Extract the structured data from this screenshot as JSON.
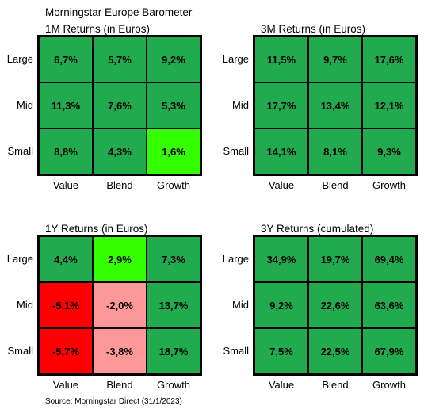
{
  "header": {
    "title": "Morningstar Europe Barometer"
  },
  "source": "Source: Morningstar Direct (31/1/2023)",
  "colors": {
    "green": "#22aa4e",
    "bright_green": "#33ff00",
    "red": "#ff0000",
    "pink": "#ff9999"
  },
  "chart_data": [
    {
      "type": "heatmap",
      "title": "1M Returns (in Euros)",
      "rows": [
        "Large",
        "Mid",
        "Small"
      ],
      "columns": [
        "Value",
        "Blend",
        "Growth"
      ],
      "values": [
        [
          "6,7%",
          "5,7%",
          "9,2%"
        ],
        [
          "11,3%",
          "7,6%",
          "5,3%"
        ],
        [
          "8,8%",
          "4,3%",
          "1,6%"
        ]
      ],
      "fills": [
        [
          "green",
          "green",
          "green"
        ],
        [
          "green",
          "green",
          "green"
        ],
        [
          "green",
          "green",
          "bright_green"
        ]
      ]
    },
    {
      "type": "heatmap",
      "title": "3M Returns (in Euros)",
      "rows": [
        "Large",
        "Mid",
        "Small"
      ],
      "columns": [
        "Value",
        "Blend",
        "Growth"
      ],
      "values": [
        [
          "11,5%",
          "9,7%",
          "17,6%"
        ],
        [
          "17,7%",
          "13,4%",
          "12,1%"
        ],
        [
          "14,1%",
          "8,1%",
          "9,3%"
        ]
      ],
      "fills": [
        [
          "green",
          "green",
          "green"
        ],
        [
          "green",
          "green",
          "green"
        ],
        [
          "green",
          "green",
          "green"
        ]
      ]
    },
    {
      "type": "heatmap",
      "title": "1Y Returns (in Euros)",
      "rows": [
        "Large",
        "Mid",
        "Small"
      ],
      "columns": [
        "Value",
        "Blend",
        "Growth"
      ],
      "values": [
        [
          "4,4%",
          "2,9%",
          "7,3%"
        ],
        [
          "-5,1%",
          "-2,0%",
          "13,7%"
        ],
        [
          "-5,7%",
          "-3,8%",
          "18,7%"
        ]
      ],
      "fills": [
        [
          "green",
          "bright_green",
          "green"
        ],
        [
          "red",
          "pink",
          "green"
        ],
        [
          "red",
          "pink",
          "green"
        ]
      ]
    },
    {
      "type": "heatmap",
      "title": "3Y Returns (cumulated)",
      "rows": [
        "Large",
        "Mid",
        "Small"
      ],
      "columns": [
        "Value",
        "Blend",
        "Growth"
      ],
      "values": [
        [
          "34,9%",
          "19,7%",
          "69,4%"
        ],
        [
          "9,2%",
          "22,6%",
          "63,6%"
        ],
        [
          "7,5%",
          "22,5%",
          "67,9%"
        ]
      ],
      "fills": [
        [
          "green",
          "green",
          "green"
        ],
        [
          "green",
          "green",
          "green"
        ],
        [
          "green",
          "green",
          "green"
        ]
      ]
    }
  ]
}
